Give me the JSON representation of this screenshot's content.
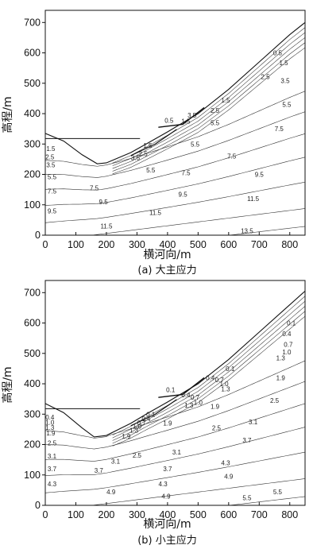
{
  "chart_data": [
    {
      "type": "line",
      "subtype": "contour",
      "title": "(a) 大主应力",
      "xlabel": "横河向/m",
      "ylabel": "高程/m",
      "xlim": [
        0,
        850
      ],
      "ylim": [
        0,
        740
      ],
      "x_ticks": [
        0,
        100,
        200,
        300,
        400,
        500,
        600,
        700,
        800
      ],
      "y_ticks": [
        0,
        100,
        200,
        300,
        400,
        500,
        600,
        700
      ],
      "water_level": 318,
      "terrain": [
        [
          0,
          335
        ],
        [
          60,
          310
        ],
        [
          120,
          265
        ],
        [
          170,
          235
        ],
        [
          200,
          238
        ],
        [
          240,
          255
        ],
        [
          280,
          272
        ],
        [
          330,
          300
        ],
        [
          400,
          340
        ],
        [
          500,
          400
        ],
        [
          600,
          480
        ],
        [
          700,
          570
        ],
        [
          800,
          660
        ],
        [
          850,
          700
        ]
      ],
      "contour_labels": [
        {
          "text": "0.5",
          "x": 760,
          "y": 600
        },
        {
          "text": "1.5",
          "x": 780,
          "y": 568
        },
        {
          "text": "2.5",
          "x": 720,
          "y": 522
        },
        {
          "text": "3.5",
          "x": 785,
          "y": 508
        },
        {
          "text": "5.5",
          "x": 790,
          "y": 430
        },
        {
          "text": "1.5",
          "x": 590,
          "y": 445
        },
        {
          "text": "2.5",
          "x": 555,
          "y": 410
        },
        {
          "text": "3.5",
          "x": 480,
          "y": 395
        },
        {
          "text": "0.5",
          "x": 405,
          "y": 378
        },
        {
          "text": "1.5",
          "x": 460,
          "y": 375
        },
        {
          "text": "5.5",
          "x": 555,
          "y": 370
        },
        {
          "text": "7.5",
          "x": 765,
          "y": 350
        },
        {
          "text": "1.5",
          "x": 335,
          "y": 295
        },
        {
          "text": "2.5",
          "x": 320,
          "y": 268
        },
        {
          "text": "3.5",
          "x": 295,
          "y": 255
        },
        {
          "text": "5.5",
          "x": 490,
          "y": 300
        },
        {
          "text": "5.5",
          "x": 345,
          "y": 215
        },
        {
          "text": "7.5",
          "x": 610,
          "y": 260
        },
        {
          "text": "7.5",
          "x": 460,
          "y": 205
        },
        {
          "text": "9.5",
          "x": 700,
          "y": 200
        },
        {
          "text": "7.5",
          "x": 160,
          "y": 155
        },
        {
          "text": "9.5",
          "x": 450,
          "y": 135
        },
        {
          "text": "11.5",
          "x": 680,
          "y": 120
        },
        {
          "text": "9.5",
          "x": 190,
          "y": 110
        },
        {
          "text": "11.5",
          "x": 360,
          "y": 75
        },
        {
          "text": "13.5",
          "x": 660,
          "y": 15
        },
        {
          "text": "11.5",
          "x": 200,
          "y": 30
        },
        {
          "text": "1.5",
          "x": 18,
          "y": 285
        },
        {
          "text": "2.5",
          "x": 15,
          "y": 258
        },
        {
          "text": "3.5",
          "x": 18,
          "y": 232
        },
        {
          "text": "5.5",
          "x": 22,
          "y": 192
        },
        {
          "text": "7.5",
          "x": 22,
          "y": 145
        },
        {
          "text": "9.5",
          "x": 22,
          "y": 80
        }
      ]
    },
    {
      "type": "line",
      "subtype": "contour",
      "title": "(b) 小主应力",
      "xlabel": "横河向/m",
      "ylabel": "高程/m",
      "xlim": [
        0,
        850
      ],
      "ylim": [
        0,
        740
      ],
      "x_ticks": [
        0,
        100,
        200,
        300,
        400,
        500,
        600,
        700,
        800
      ],
      "y_ticks": [
        0,
        100,
        200,
        300,
        400,
        500,
        600,
        700
      ],
      "water_level": 318,
      "terrain": [
        [
          0,
          335
        ],
        [
          60,
          305
        ],
        [
          120,
          255
        ],
        [
          160,
          225
        ],
        [
          200,
          230
        ],
        [
          240,
          250
        ],
        [
          280,
          270
        ],
        [
          330,
          300
        ],
        [
          400,
          340
        ],
        [
          500,
          400
        ],
        [
          600,
          480
        ],
        [
          700,
          570
        ],
        [
          800,
          660
        ],
        [
          850,
          705
        ]
      ],
      "contour_labels": [
        {
          "text": "0.1",
          "x": 805,
          "y": 600
        },
        {
          "text": "0.4",
          "x": 790,
          "y": 565
        },
        {
          "text": "0.7",
          "x": 795,
          "y": 530
        },
        {
          "text": "1.0",
          "x": 790,
          "y": 505
        },
        {
          "text": "1.3",
          "x": 770,
          "y": 485
        },
        {
          "text": "1.9",
          "x": 770,
          "y": 420
        },
        {
          "text": "0.1",
          "x": 605,
          "y": 450
        },
        {
          "text": "0.4",
          "x": 540,
          "y": 420
        },
        {
          "text": "0.7",
          "x": 570,
          "y": 413
        },
        {
          "text": "1.0",
          "x": 585,
          "y": 400
        },
        {
          "text": "1.3",
          "x": 590,
          "y": 383
        },
        {
          "text": "1.9",
          "x": 555,
          "y": 325
        },
        {
          "text": "2.5",
          "x": 750,
          "y": 345
        },
        {
          "text": "0.1",
          "x": 410,
          "y": 380
        },
        {
          "text": "0.4",
          "x": 460,
          "y": 363
        },
        {
          "text": "0.7",
          "x": 490,
          "y": 355
        },
        {
          "text": "1.0",
          "x": 500,
          "y": 338
        },
        {
          "text": "1.3",
          "x": 470,
          "y": 330
        },
        {
          "text": "1.9",
          "x": 400,
          "y": 270
        },
        {
          "text": "2.5",
          "x": 560,
          "y": 255
        },
        {
          "text": "3.1",
          "x": 680,
          "y": 275
        },
        {
          "text": "0.1",
          "x": 345,
          "y": 300
        },
        {
          "text": "0.4",
          "x": 330,
          "y": 285
        },
        {
          "text": "0.7",
          "x": 315,
          "y": 272
        },
        {
          "text": "1.0",
          "x": 300,
          "y": 260
        },
        {
          "text": "1.3",
          "x": 290,
          "y": 247
        },
        {
          "text": "1.9",
          "x": 265,
          "y": 228
        },
        {
          "text": "2.5",
          "x": 300,
          "y": 165
        },
        {
          "text": "3.1",
          "x": 430,
          "y": 175
        },
        {
          "text": "3.7",
          "x": 660,
          "y": 215
        },
        {
          "text": "3.1",
          "x": 230,
          "y": 145
        },
        {
          "text": "3.7",
          "x": 400,
          "y": 120
        },
        {
          "text": "4.3",
          "x": 590,
          "y": 140
        },
        {
          "text": "3.7",
          "x": 175,
          "y": 115
        },
        {
          "text": "4.3",
          "x": 385,
          "y": 70
        },
        {
          "text": "4.9",
          "x": 600,
          "y": 95
        },
        {
          "text": "4.9",
          "x": 215,
          "y": 45
        },
        {
          "text": "5.5",
          "x": 660,
          "y": 25
        },
        {
          "text": "5.5",
          "x": 760,
          "y": 45
        },
        {
          "text": "4.9",
          "x": 395,
          "y": 30
        },
        {
          "text": "0.4",
          "x": 15,
          "y": 290
        },
        {
          "text": "1.0",
          "x": 15,
          "y": 273
        },
        {
          "text": "1.3",
          "x": 15,
          "y": 256
        },
        {
          "text": "1.9",
          "x": 18,
          "y": 238
        },
        {
          "text": "2.5",
          "x": 22,
          "y": 205
        },
        {
          "text": "3.1",
          "x": 22,
          "y": 162
        },
        {
          "text": "3.7",
          "x": 22,
          "y": 120
        },
        {
          "text": "4.3",
          "x": 22,
          "y": 70
        }
      ]
    }
  ]
}
